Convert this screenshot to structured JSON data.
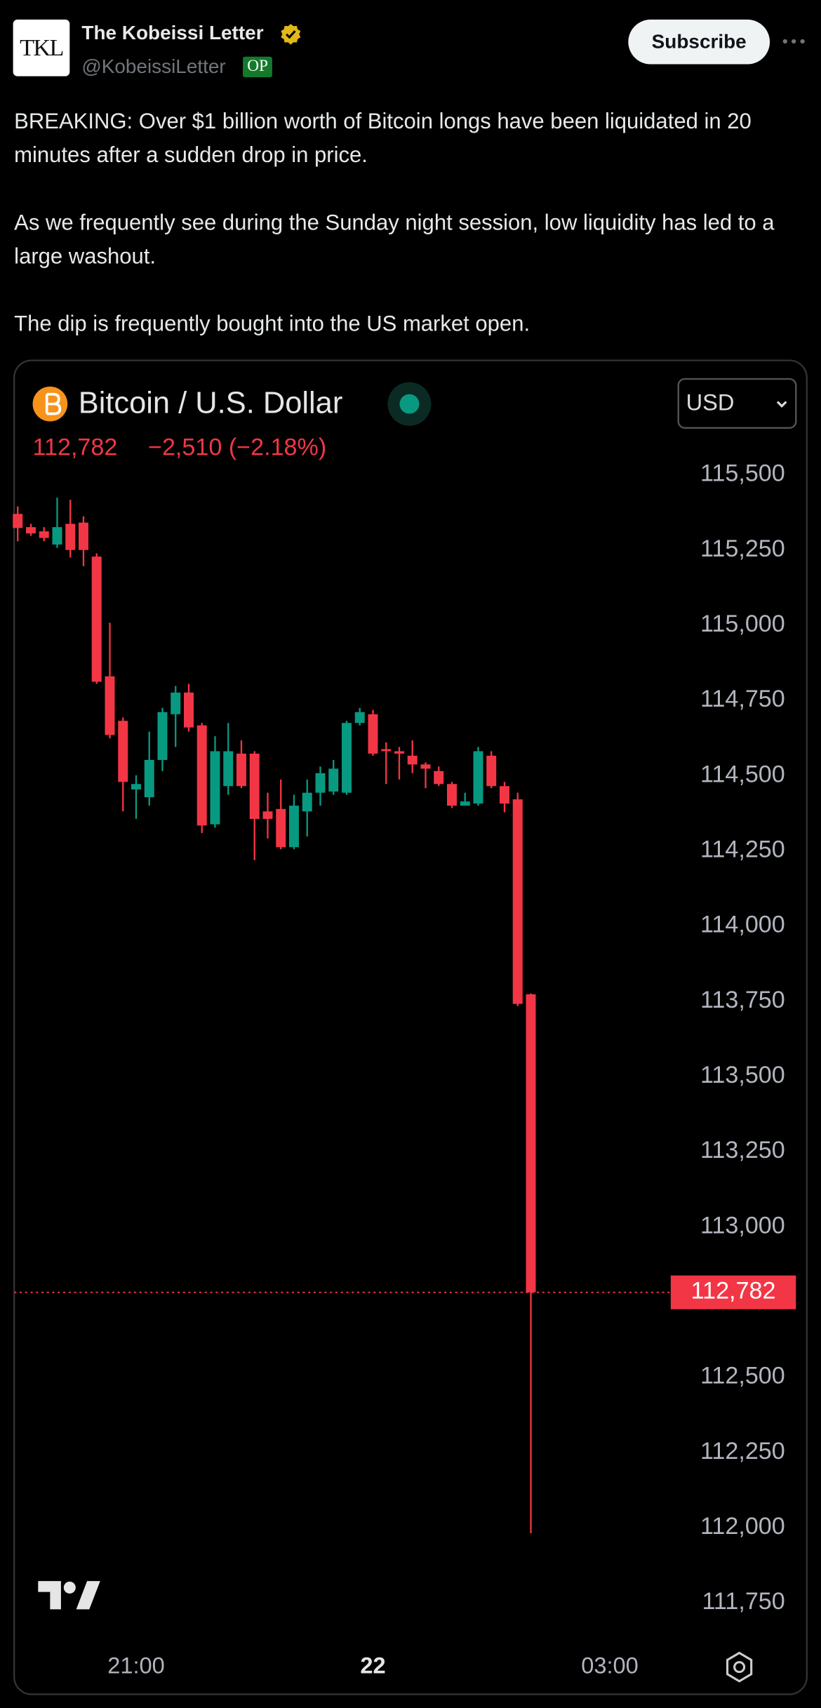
{
  "header": {
    "avatar": "TKL",
    "name": "The Kobeissi Letter",
    "handle": "@KobeissiLetter",
    "badge": "OP",
    "button": "Subscribe"
  },
  "text": [
    "BREAKING: Over $1 billion worth of Bitcoin longs have been liquidated in 20 minutes after a sudden drop in price.",
    "As we frequently see during the Sunday night session, low liquidity has led to a large washout.",
    "The dip is frequently bought into the US market open."
  ],
  "chart_data": {
    "type": "candlestick",
    "title": "Bitcoin / U.S. Dollar",
    "currency": "USD",
    "last_price": "112,782",
    "change": "−2,510 (−2.18%)",
    "up_color": "#089981",
    "down_color": "#f23645",
    "x": [
      1170,
      1180,
      1190,
      1200,
      1210,
      1220,
      1230,
      1240,
      1250,
      1260,
      1270,
      1280,
      1290,
      1300,
      1310,
      1320,
      1330,
      1340,
      1350,
      1360,
      1370,
      1380,
      1390,
      1400,
      1410,
      1420,
      1430,
      1440,
      1450,
      1460,
      1470,
      1480,
      1490,
      1500,
      1510,
      1520,
      1530,
      1540,
      1550,
      1560
    ],
    "open": [
      115370,
      115326,
      115312,
      115268,
      115337,
      115341,
      115228,
      114830,
      114682,
      114454,
      114428,
      114552,
      114704,
      114776,
      114667,
      114338,
      114465,
      114573,
      114573,
      114381,
      114389,
      114262,
      114381,
      114443,
      114447,
      114443,
      114675,
      114704,
      114588,
      114581,
      114566,
      114537,
      114515,
      114472,
      114400,
      114407,
      114566,
      114465,
      114421,
      113773
    ],
    "high": [
      115395,
      115337,
      115326,
      115424,
      115417,
      115362,
      115239,
      115008,
      114693,
      114501,
      114646,
      114725,
      114798,
      114805,
      114675,
      114631,
      114675,
      114617,
      114581,
      114443,
      114487,
      114436,
      114487,
      114530,
      114552,
      114682,
      114725,
      114718,
      114610,
      114595,
      114617,
      114544,
      114530,
      114479,
      114443,
      114595,
      114581,
      114479,
      114443,
      113776
    ],
    "low": [
      115279,
      115297,
      115279,
      115257,
      115225,
      115196,
      114805,
      114624,
      114381,
      114356,
      114400,
      114515,
      114595,
      114646,
      114309,
      114327,
      114436,
      114458,
      114219,
      114291,
      114255,
      114255,
      114298,
      114400,
      114436,
      114436,
      114667,
      114566,
      114472,
      114487,
      114508,
      114458,
      114465,
      114392,
      114400,
      114400,
      114458,
      114378,
      113734,
      111981
    ],
    "close": [
      115323,
      115305,
      115290,
      115326,
      115250,
      115250,
      114812,
      114635,
      114479,
      114472,
      114552,
      114711,
      114776,
      114660,
      114334,
      114581,
      114581,
      114465,
      114356,
      114356,
      114262,
      114400,
      114443,
      114508,
      114523,
      114675,
      114711,
      114573,
      114581,
      114573,
      114537,
      114523,
      114472,
      114400,
      114414,
      114581,
      114465,
      114407,
      113741,
      112782
    ],
    "ylim": [
      111700,
      115600
    ],
    "yticks": [
      {
        "value": 111750,
        "label": "111,750"
      },
      {
        "value": 112000,
        "label": "112,000"
      },
      {
        "value": 112250,
        "label": "112,250"
      },
      {
        "value": 112500,
        "label": "112,500"
      },
      {
        "value": 113000,
        "label": "113,000"
      },
      {
        "value": 113250,
        "label": "113,250"
      },
      {
        "value": 113500,
        "label": "113,500"
      },
      {
        "value": 113750,
        "label": "113,750"
      },
      {
        "value": 114000,
        "label": "114,000"
      },
      {
        "value": 114250,
        "label": "114,250"
      },
      {
        "value": 114500,
        "label": "114,500"
      },
      {
        "value": 114750,
        "label": "114,750"
      },
      {
        "value": 115000,
        "label": "115,000"
      },
      {
        "value": 115250,
        "label": "115,250"
      },
      {
        "value": 115500,
        "label": "115,500"
      }
    ],
    "xlim": [
      1167.3,
      1665.5
    ],
    "xticks": [
      {
        "value": 1260,
        "label": "21:00"
      },
      {
        "value": 1440,
        "label": "22"
      },
      {
        "value": 1620,
        "label": "03:00"
      }
    ],
    "price_marker": {
      "value": 112782,
      "label": "112,782"
    }
  }
}
